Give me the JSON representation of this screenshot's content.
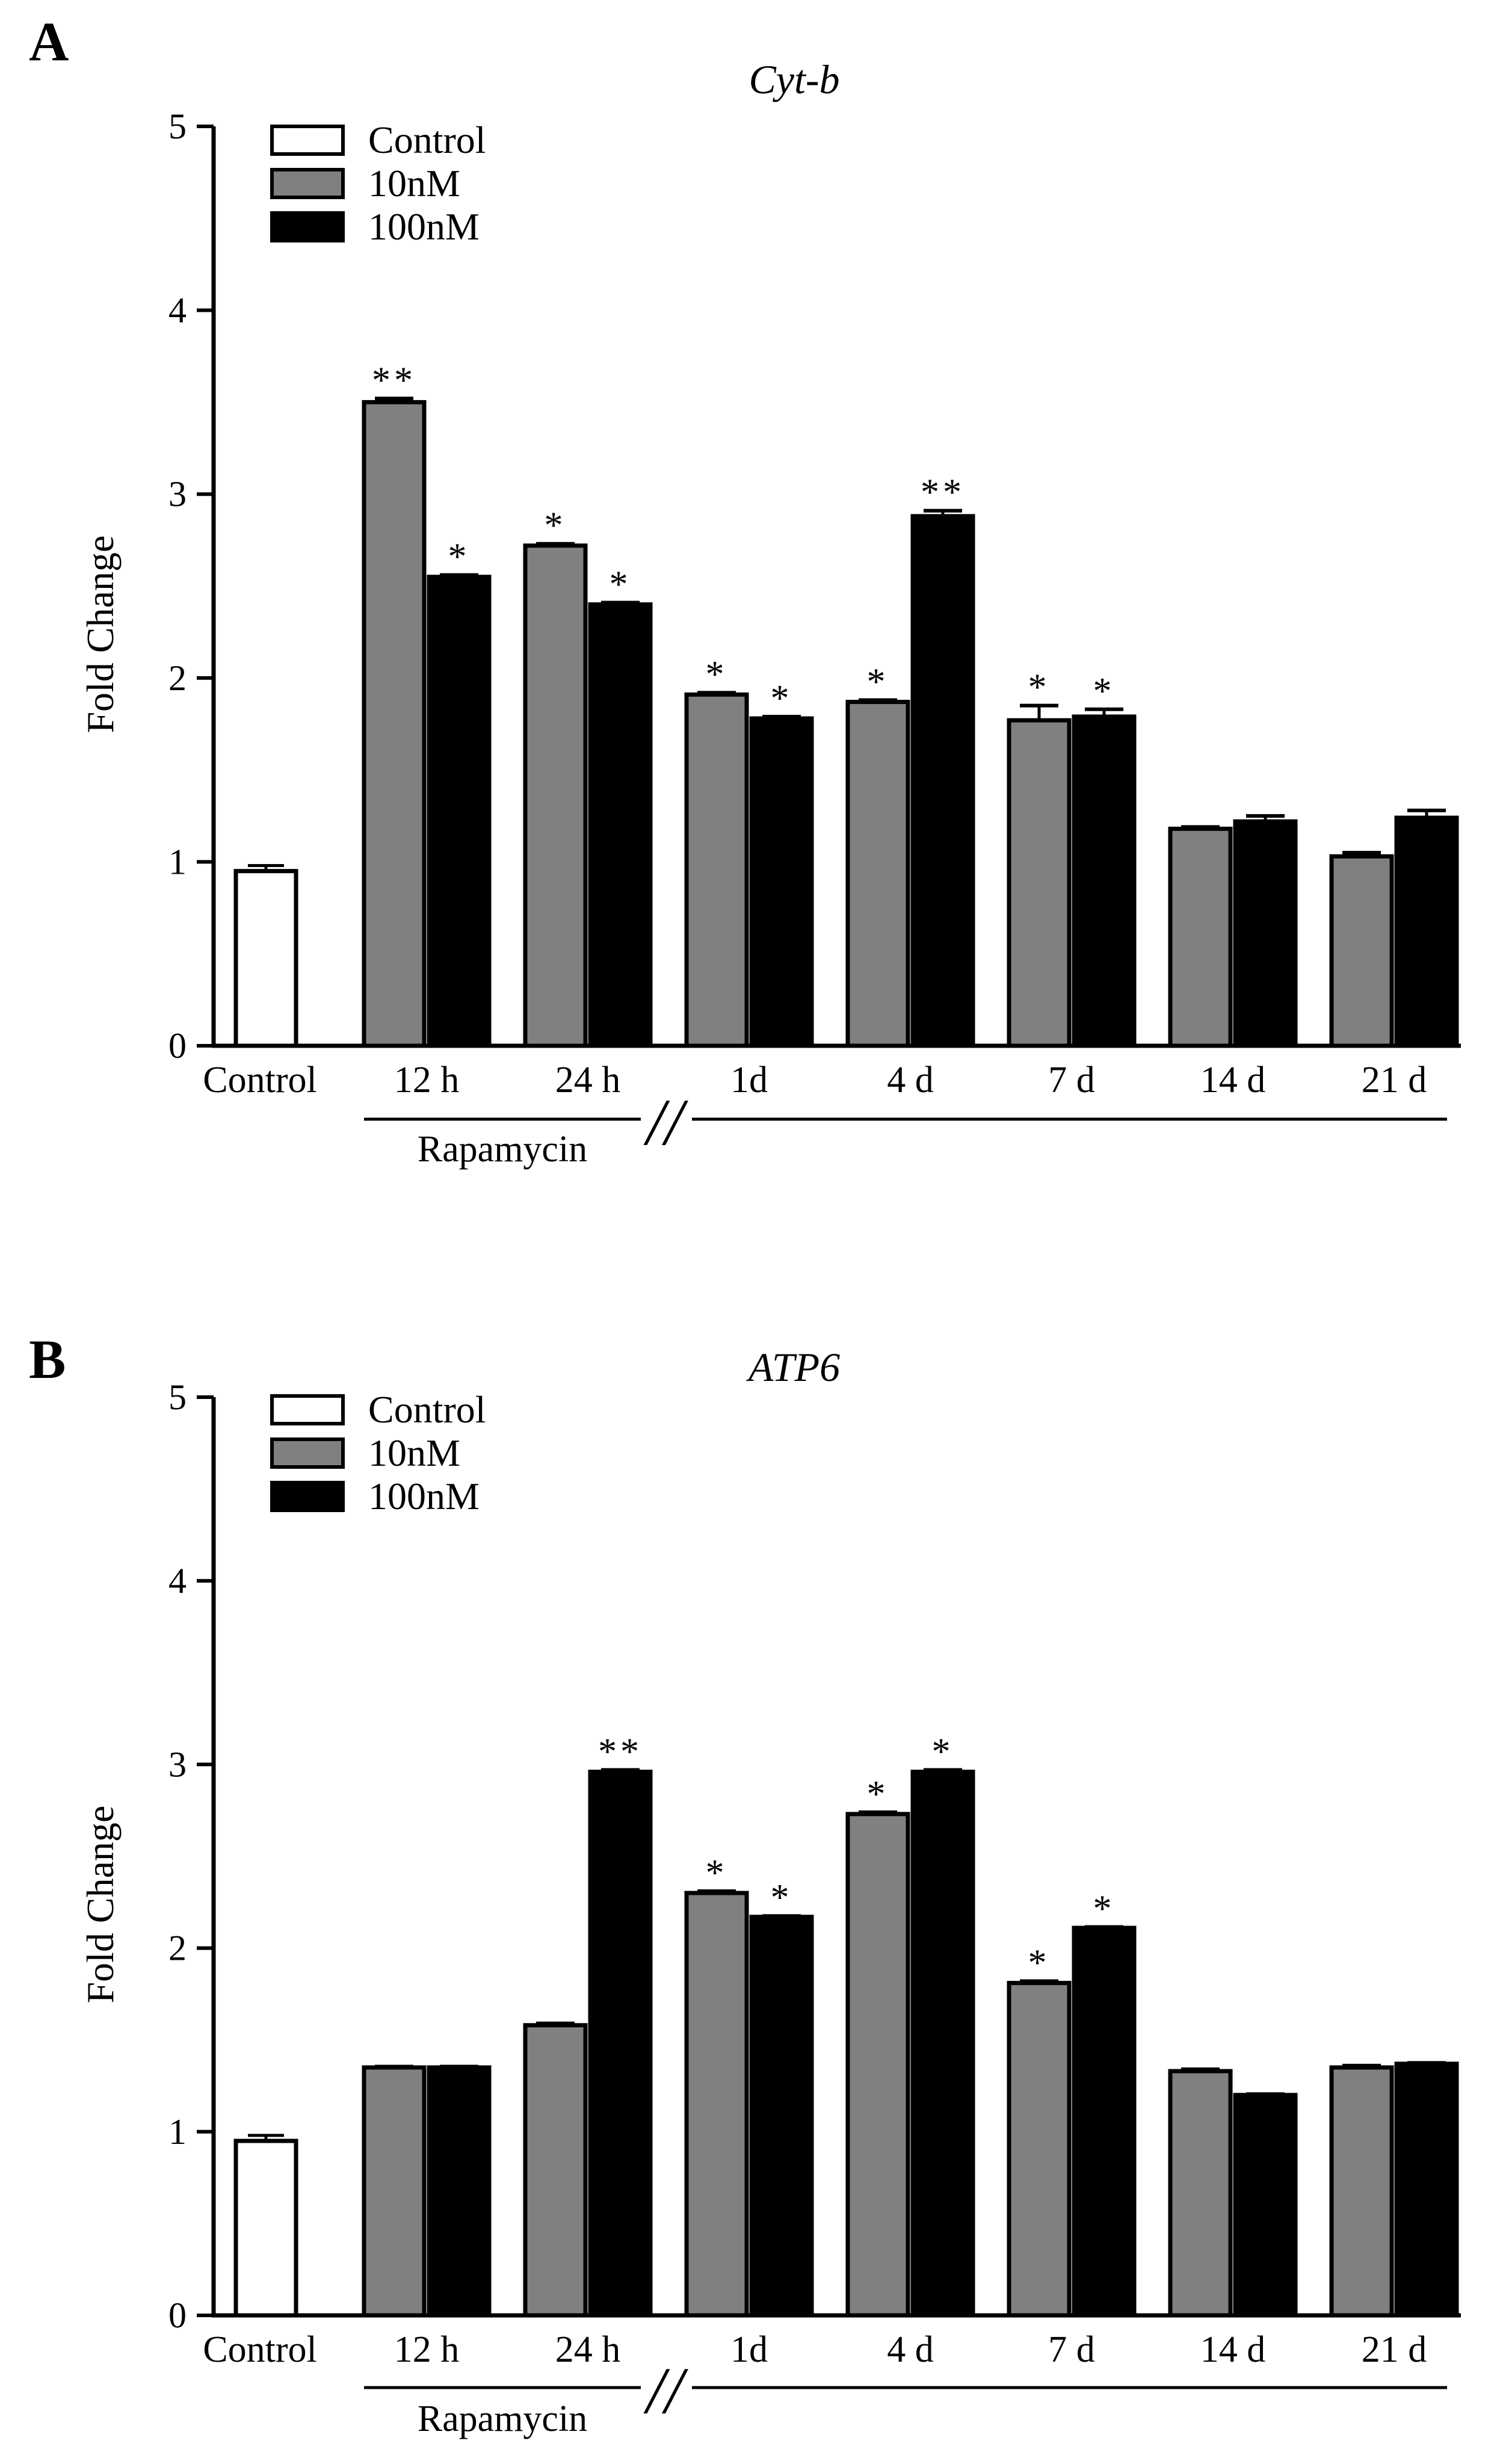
{
  "chart_data": [
    {
      "panel": "A",
      "type": "bar",
      "title": "Cyt-b",
      "ylabel": "Fold Change",
      "xlabel": "",
      "ylim": [
        0,
        5
      ],
      "yticks": [
        "0",
        "1",
        "2",
        "3",
        "4",
        "5"
      ],
      "legend": [
        "Control",
        "10nM",
        "100nM"
      ],
      "colors": {
        "Control": "#ffffff",
        "10nM": "#808080",
        "100nM": "#000000"
      },
      "bracket_label": "Rapamycin",
      "break_mark": "//",
      "control": {
        "label": "Control",
        "value": 0.95,
        "error": 0.03
      },
      "categories": [
        "12 h",
        "24 h",
        "1d",
        "4 d",
        "7 d",
        "14 d",
        "21 d"
      ],
      "series": [
        {
          "name": "10nM",
          "values": [
            3.5,
            2.72,
            1.91,
            1.87,
            1.77,
            1.18,
            1.03
          ],
          "errors": [
            0.02,
            0.01,
            0.01,
            0.01,
            0.08,
            0.01,
            0.02
          ],
          "sig": [
            "**",
            "*",
            "*",
            "*",
            "*",
            "",
            ""
          ]
        },
        {
          "name": "100nM",
          "values": [
            2.55,
            2.4,
            1.78,
            2.88,
            1.79,
            1.22,
            1.24
          ],
          "errors": [
            0.01,
            0.01,
            0.01,
            0.03,
            0.04,
            0.03,
            0.04
          ],
          "sig": [
            "*",
            "*",
            "*",
            "**",
            "*",
            "",
            ""
          ]
        }
      ]
    },
    {
      "panel": "B",
      "type": "bar",
      "title": "ATP6",
      "ylabel": "Fold Change",
      "xlabel": "",
      "ylim": [
        0,
        5
      ],
      "yticks": [
        "0",
        "1",
        "2",
        "3",
        "4",
        "5"
      ],
      "legend": [
        "Control",
        "10nM",
        "100nM"
      ],
      "colors": {
        "Control": "#ffffff",
        "10nM": "#808080",
        "100nM": "#000000"
      },
      "bracket_label": "Rapamycin",
      "break_mark": "//",
      "control": {
        "label": "Control",
        "value": 0.95,
        "error": 0.03
      },
      "categories": [
        "12 h",
        "24 h",
        "1d",
        "4 d",
        "7 d",
        "14 d",
        "21 d"
      ],
      "series": [
        {
          "name": "10nM",
          "values": [
            1.35,
            1.58,
            2.3,
            2.73,
            1.81,
            1.33,
            1.35
          ],
          "errors": [
            0.005,
            0.01,
            0.01,
            0.01,
            0.01,
            0.01,
            0.01
          ],
          "sig": [
            "",
            "",
            "*",
            "*",
            "*",
            "",
            ""
          ]
        },
        {
          "name": "100nM",
          "values": [
            1.35,
            2.96,
            2.17,
            2.96,
            2.11,
            1.2,
            1.37
          ],
          "errors": [
            0.005,
            0.01,
            0.005,
            0.01,
            0.005,
            0.005,
            0.005
          ],
          "sig": [
            "",
            "**",
            "*",
            "*",
            "*",
            "",
            ""
          ]
        }
      ]
    }
  ]
}
